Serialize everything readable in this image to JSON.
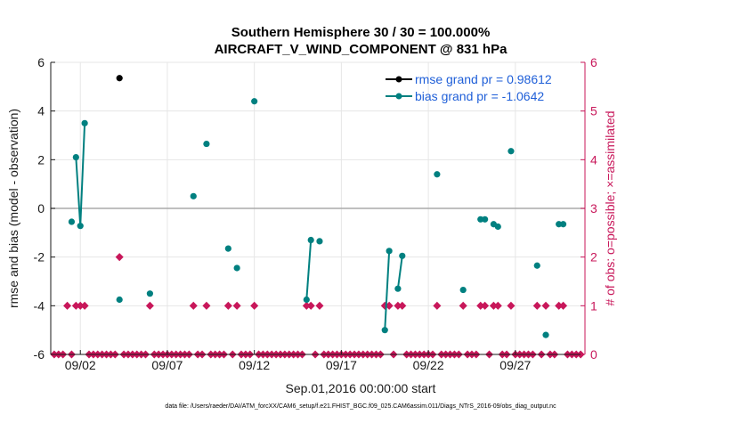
{
  "chart_data": {
    "type": "scatter",
    "title_line1": "Southern Hemisphere 30 / 30 = 100.000%",
    "title_line2": "AIRCRAFT_V_WIND_COMPONENT @ 831 hPa",
    "xlabel": "Sep.01,2016 00:00:00 start",
    "ylabel": "rmse and bias (model - observation)",
    "ylabel_right": "# of obs: o=possible; ×=assimilated",
    "xlim": [
      0.3,
      31.0
    ],
    "ylim": [
      -6,
      6
    ],
    "ylim_right": [
      0,
      6
    ],
    "x_ticks": [
      {
        "x": 2,
        "label": "09/02"
      },
      {
        "x": 7,
        "label": "09/07"
      },
      {
        "x": 12,
        "label": "09/12"
      },
      {
        "x": 17,
        "label": "09/17"
      },
      {
        "x": 22,
        "label": "09/22"
      },
      {
        "x": 27,
        "label": "09/27"
      }
    ],
    "y_ticks": [
      {
        "v": -6,
        "label": "-6"
      },
      {
        "v": -4,
        "label": "-4"
      },
      {
        "v": -2,
        "label": "-2"
      },
      {
        "v": 0,
        "label": "0"
      },
      {
        "v": 2,
        "label": "2"
      },
      {
        "v": 4,
        "label": "4"
      },
      {
        "v": 6,
        "label": "6"
      }
    ],
    "y_ticks_right": [
      {
        "v": 0,
        "label": "0"
      },
      {
        "v": 1,
        "label": "1"
      },
      {
        "v": 2,
        "label": "2"
      },
      {
        "v": 3,
        "label": "3"
      },
      {
        "v": 4,
        "label": "4"
      },
      {
        "v": 5,
        "label": "5"
      },
      {
        "v": 6,
        "label": "6"
      }
    ],
    "series": [
      {
        "name": "rmse",
        "legend": "rmse grand pr = 0.98612",
        "color": "#000000",
        "points": [
          [
            4.25,
            5.35
          ]
        ]
      },
      {
        "name": "bias",
        "legend": "bias grand pr = -1.0642",
        "color": "#008080",
        "segments": [
          [
            [
              1.5,
              -0.55
            ]
          ],
          [
            [
              1.75,
              2.1
            ],
            [
              2.0,
              -0.72
            ],
            [
              2.25,
              3.5
            ]
          ],
          [
            [
              4.25,
              -3.75
            ]
          ],
          [
            [
              6.0,
              -3.5
            ]
          ],
          [
            [
              8.5,
              0.5
            ]
          ],
          [
            [
              9.25,
              2.65
            ]
          ],
          [
            [
              10.5,
              -1.65
            ]
          ],
          [
            [
              11.0,
              -2.45
            ]
          ],
          [
            [
              12.0,
              4.4
            ]
          ],
          [
            [
              15.0,
              -3.75
            ],
            [
              15.25,
              -1.3
            ]
          ],
          [
            [
              15.75,
              -1.35
            ]
          ],
          [
            [
              19.5,
              -5.0
            ],
            [
              19.75,
              -1.75
            ]
          ],
          [
            [
              20.25,
              -3.3
            ],
            [
              20.5,
              -1.95
            ]
          ],
          [
            [
              22.5,
              1.4
            ]
          ],
          [
            [
              24.0,
              -3.35
            ]
          ],
          [
            [
              25.0,
              -0.45
            ],
            [
              25.25,
              -0.45
            ]
          ],
          [
            [
              25.75,
              -0.65
            ],
            [
              26.0,
              -0.75
            ]
          ],
          [
            [
              26.75,
              2.35
            ]
          ],
          [
            [
              28.25,
              -2.35
            ]
          ],
          [
            [
              28.75,
              -5.2
            ]
          ],
          [
            [
              29.5,
              -0.65
            ],
            [
              29.75,
              -0.65
            ]
          ]
        ]
      },
      {
        "name": "obs_count",
        "color": "#c8175a",
        "axis": "right",
        "nonzero": [
          {
            "x": 1.25,
            "count": 1
          },
          {
            "x": 1.75,
            "count": 1
          },
          {
            "x": 2.0,
            "count": 1
          },
          {
            "x": 2.25,
            "count": 1
          },
          {
            "x": 4.25,
            "count": 2
          },
          {
            "x": 6.0,
            "count": 1
          },
          {
            "x": 8.5,
            "count": 1
          },
          {
            "x": 9.25,
            "count": 1
          },
          {
            "x": 10.5,
            "count": 1
          },
          {
            "x": 11.0,
            "count": 1
          },
          {
            "x": 12.0,
            "count": 1
          },
          {
            "x": 15.0,
            "count": 1
          },
          {
            "x": 15.25,
            "count": 1
          },
          {
            "x": 15.75,
            "count": 1
          },
          {
            "x": 19.5,
            "count": 1
          },
          {
            "x": 19.75,
            "count": 1
          },
          {
            "x": 20.25,
            "count": 1
          },
          {
            "x": 20.5,
            "count": 1
          },
          {
            "x": 22.5,
            "count": 1
          },
          {
            "x": 24.0,
            "count": 1
          },
          {
            "x": 25.0,
            "count": 1
          },
          {
            "x": 25.25,
            "count": 1
          },
          {
            "x": 25.75,
            "count": 1
          },
          {
            "x": 26.0,
            "count": 1
          },
          {
            "x": 26.75,
            "count": 1
          },
          {
            "x": 28.25,
            "count": 1
          },
          {
            "x": 28.75,
            "count": 1
          },
          {
            "x": 29.5,
            "count": 1
          },
          {
            "x": 29.75,
            "count": 1
          }
        ],
        "time_step": 0.25
      }
    ],
    "footer": "data file: /Users/raeder/DAI/ATM_forcXX/CAM6_setup/f.e21.FHIST_BGC.f09_025.CAM6assim.011/Diags_NTrS_2016-09/obs_diag_output.nc"
  }
}
